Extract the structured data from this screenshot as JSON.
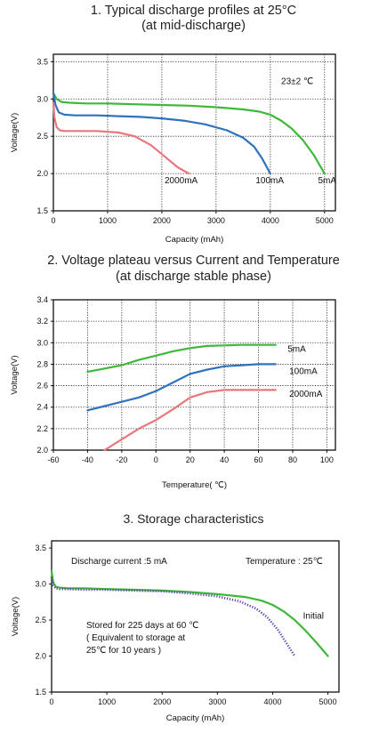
{
  "chart_data": [
    {
      "type": "line",
      "title_line1": "1. Typical discharge profiles at 25°C",
      "title_line2": "(at mid-discharge)",
      "xlabel": "Capacity (mAh)",
      "ylabel": "Voltage(V)",
      "xlim": [
        0,
        5200
      ],
      "ylim": [
        1.5,
        3.6
      ],
      "xticks": [
        0,
        1000,
        2000,
        3000,
        4000,
        5000
      ],
      "yticks": [
        1.5,
        2.0,
        2.5,
        3.0,
        3.5
      ],
      "xtick_labels": [
        "0",
        "1000",
        "2000",
        "3000",
        "4000",
        "5000"
      ],
      "ytick_labels": [
        "1.5",
        "2.0",
        "2.5",
        "3.0",
        "3.5"
      ],
      "grid": true,
      "annotation": "23±2 ℃",
      "series": [
        {
          "name": "5mA",
          "color": "#3fb83a",
          "label_at": [
            4880,
            1.92
          ],
          "x": [
            0,
            60,
            150,
            300,
            600,
            1000,
            1500,
            2000,
            2500,
            3000,
            3500,
            3800,
            4000,
            4200,
            4400,
            4600,
            4800,
            5000
          ],
          "y": [
            3.08,
            3.0,
            2.96,
            2.95,
            2.94,
            2.94,
            2.93,
            2.92,
            2.91,
            2.89,
            2.86,
            2.83,
            2.79,
            2.71,
            2.6,
            2.45,
            2.25,
            2.0
          ]
        },
        {
          "name": "100mA",
          "color": "#2f72be",
          "label_at": [
            3730,
            1.92
          ],
          "x": [
            0,
            40,
            100,
            200,
            400,
            800,
            1200,
            1600,
            2000,
            2400,
            2800,
            3200,
            3500,
            3700,
            3850,
            4000
          ],
          "y": [
            3.08,
            2.92,
            2.82,
            2.79,
            2.78,
            2.78,
            2.77,
            2.76,
            2.74,
            2.71,
            2.66,
            2.58,
            2.48,
            2.36,
            2.2,
            2.0
          ]
        },
        {
          "name": "2000mA",
          "color": "#e8767b",
          "label_at": [
            2050,
            1.92
          ],
          "x": [
            0,
            20,
            60,
            120,
            200,
            400,
            800,
            1200,
            1500,
            1800,
            2100,
            2300,
            2500
          ],
          "y": [
            2.95,
            2.75,
            2.62,
            2.58,
            2.57,
            2.57,
            2.57,
            2.55,
            2.5,
            2.38,
            2.2,
            2.08,
            2.0
          ]
        }
      ]
    },
    {
      "type": "line",
      "title_line1": "2. Voltage plateau versus Current and Temperature",
      "title_line2": "(at discharge stable phase)",
      "xlabel": "Temperature( ℃)",
      "ylabel": "Voltage(V)",
      "xlim": [
        -60,
        105
      ],
      "ylim": [
        2.0,
        3.4
      ],
      "xticks": [
        -60,
        -40,
        -20,
        0,
        20,
        40,
        60,
        80,
        100
      ],
      "yticks": [
        2.0,
        2.2,
        2.4,
        2.6,
        2.8,
        3.0,
        3.2,
        3.4
      ],
      "xtick_labels": [
        "-60",
        "-40",
        "-20",
        "0",
        "20",
        "40",
        "60",
        "80",
        "100"
      ],
      "ytick_labels": [
        "2.0",
        "2.2",
        "2.4",
        "2.6",
        "2.8",
        "3.0",
        "3.2",
        "3.4"
      ],
      "grid": true,
      "series": [
        {
          "name": "5mA",
          "color": "#3fb83a",
          "label_at": [
            77,
            2.95
          ],
          "x": [
            -40,
            -30,
            -20,
            -10,
            0,
            10,
            20,
            30,
            40,
            50,
            60,
            70
          ],
          "y": [
            2.73,
            2.76,
            2.79,
            2.84,
            2.88,
            2.92,
            2.95,
            2.97,
            2.975,
            2.98,
            2.98,
            2.98
          ]
        },
        {
          "name": "100mA",
          "color": "#2f72be",
          "label_at": [
            78,
            2.74
          ],
          "x": [
            -40,
            -30,
            -20,
            -10,
            0,
            10,
            20,
            30,
            40,
            50,
            60,
            70
          ],
          "y": [
            2.37,
            2.41,
            2.45,
            2.49,
            2.55,
            2.63,
            2.71,
            2.75,
            2.78,
            2.79,
            2.8,
            2.8
          ]
        },
        {
          "name": "2000mA",
          "color": "#e8767b",
          "label_at": [
            78,
            2.53
          ],
          "x": [
            -30,
            -20,
            -10,
            0,
            10,
            20,
            30,
            40,
            50,
            60,
            70
          ],
          "y": [
            2.0,
            2.1,
            2.2,
            2.28,
            2.38,
            2.49,
            2.54,
            2.56,
            2.56,
            2.56,
            2.56
          ]
        }
      ]
    },
    {
      "type": "line",
      "title": "3. Storage characteristics",
      "xlabel": "Capacity (mAh)",
      "ylabel": "Voltage(V)",
      "xlim": [
        0,
        5200
      ],
      "ylim": [
        1.5,
        3.6
      ],
      "xticks": [
        0,
        1000,
        2000,
        3000,
        4000,
        5000
      ],
      "yticks": [
        1.5,
        2.0,
        2.5,
        3.0,
        3.5
      ],
      "xtick_labels": [
        "0",
        "1000",
        "2000",
        "3000",
        "4000",
        "5000"
      ],
      "ytick_labels": [
        "1.5",
        "2.0",
        "2.5",
        "3.0",
        "3.5"
      ],
      "grid": false,
      "annotation_left": "Discharge current :5 mA",
      "annotation_right": "Temperature : 25℃",
      "annotation_stored": [
        "Stored for 225 days at 60 ℃",
        "( Equivalent to storage at",
        "25℃ for 10 years )"
      ],
      "series": [
        {
          "name": "Initial",
          "color": "#3fb83a",
          "label_at": [
            4550,
            2.57
          ],
          "x": [
            0,
            30,
            80,
            150,
            300,
            600,
            1000,
            1500,
            2000,
            2500,
            3000,
            3500,
            3800,
            4000,
            4200,
            4400,
            4600,
            4800,
            5000
          ],
          "y": [
            3.18,
            3.02,
            2.96,
            2.95,
            2.94,
            2.94,
            2.93,
            2.92,
            2.91,
            2.89,
            2.86,
            2.82,
            2.77,
            2.71,
            2.62,
            2.5,
            2.35,
            2.18,
            2.0
          ]
        },
        {
          "name": "Stored",
          "color": "#5a3cae",
          "dotted": true,
          "x": [
            0,
            30,
            80,
            150,
            300,
            600,
            1000,
            1500,
            2000,
            2500,
            3000,
            3400,
            3700,
            3900,
            4100,
            4250,
            4400
          ],
          "y": [
            3.1,
            2.98,
            2.94,
            2.93,
            2.93,
            2.92,
            2.92,
            2.91,
            2.9,
            2.87,
            2.83,
            2.76,
            2.66,
            2.54,
            2.36,
            2.18,
            2.0
          ]
        }
      ]
    }
  ]
}
